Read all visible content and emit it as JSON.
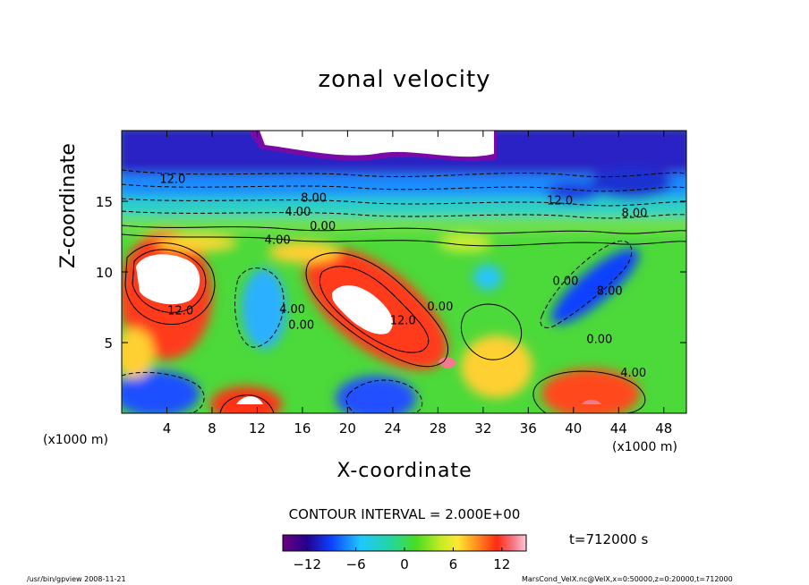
{
  "chart_data": {
    "type": "heatmap",
    "title": "zonal velocity",
    "xlabel": "X-coordinate",
    "ylabel": "Z-coordinate",
    "x_unit": "(x1000 m)",
    "xlim": [
      0,
      50
    ],
    "ylim": [
      0,
      20
    ],
    "x_ticks": [
      4,
      8,
      12,
      16,
      20,
      24,
      28,
      32,
      36,
      40,
      44,
      48
    ],
    "y_ticks": [
      5,
      10,
      15
    ],
    "contour_interval": "CONTOUR INTERVAL = 2.000E+00",
    "time": "t=712000 s",
    "colorbar": {
      "min": -15,
      "max": 15,
      "ticks": [
        -12,
        -6,
        0,
        6,
        12
      ],
      "tick_labels": [
        "−12",
        "−6",
        "0",
        "6",
        "12"
      ]
    },
    "contour_labels": [
      {
        "text": "12.0",
        "x": 4.5,
        "z": 16.6
      },
      {
        "text": "8.00",
        "x": 17.0,
        "z": 15.3
      },
      {
        "text": "4.00",
        "x": 15.6,
        "z": 14.3
      },
      {
        "text": "0.00",
        "x": 17.8,
        "z": 13.3
      },
      {
        "text": "4.00",
        "x": 13.8,
        "z": 12.3
      },
      {
        "text": "12.0",
        "x": 38.8,
        "z": 15.1
      },
      {
        "text": "8.00",
        "x": 45.4,
        "z": 14.2
      },
      {
        "text": "12.0",
        "x": 5.2,
        "z": 7.3
      },
      {
        "text": "4.00",
        "x": 15.1,
        "z": 7.4
      },
      {
        "text": "0.00",
        "x": 15.9,
        "z": 6.3
      },
      {
        "text": "12.0",
        "x": 24.9,
        "z": 6.6
      },
      {
        "text": "0.00",
        "x": 28.2,
        "z": 7.6
      },
      {
        "text": "0.00",
        "x": 39.3,
        "z": 9.4
      },
      {
        "text": "8.00",
        "x": 43.2,
        "z": 8.7
      },
      {
        "text": "0.00",
        "x": 42.3,
        "z": 5.3
      },
      {
        "text": "4.00",
        "x": 45.3,
        "z": 2.9
      }
    ]
  },
  "footer": {
    "left": "/usr/bin/gpview   2008-11-21",
    "right": "MarsCond_VelX.nc@VelX,x=0:50000,z=0:20000,t=712000"
  }
}
